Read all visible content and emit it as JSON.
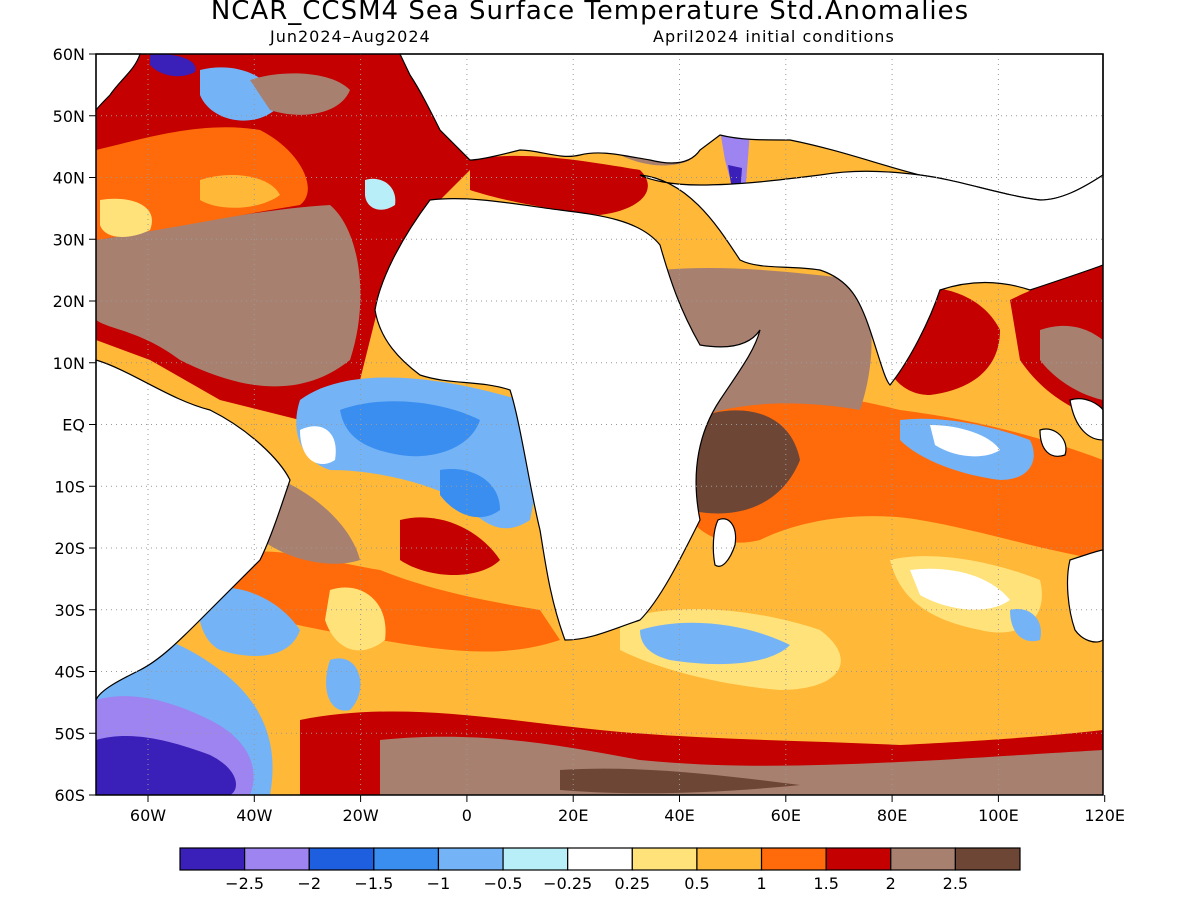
{
  "title": "NCAR_CCSM4 Sea Surface Temperature Std.Anomalies",
  "subtitle_left": "Jun2024–Aug2024",
  "subtitle_right": "April2024 initial conditions",
  "lat_labels": [
    "60N",
    "50N",
    "40N",
    "30N",
    "20N",
    "10N",
    "EQ",
    "10S",
    "20S",
    "30S",
    "40S",
    "50S",
    "60S"
  ],
  "lon_labels": [
    "60W",
    "40W",
    "20W",
    "0",
    "20E",
    "40E",
    "60E",
    "80E",
    "100E",
    "120E"
  ],
  "colorbar": {
    "colors": [
      "#3a1fb8",
      "#9d84f0",
      "#1e5fe0",
      "#3a8ef0",
      "#74b4f6",
      "#b8eef8",
      "#ffffff",
      "#ffe27a",
      "#ffb838",
      "#ff6a0a",
      "#c40000",
      "#a88070",
      "#6e4636"
    ],
    "labels": [
      "−2.5",
      "−2",
      "−1.5",
      "−1",
      "−0.5",
      "−0.25",
      "0.25",
      "0.5",
      "1",
      "1.5",
      "2",
      "2.5"
    ]
  }
}
